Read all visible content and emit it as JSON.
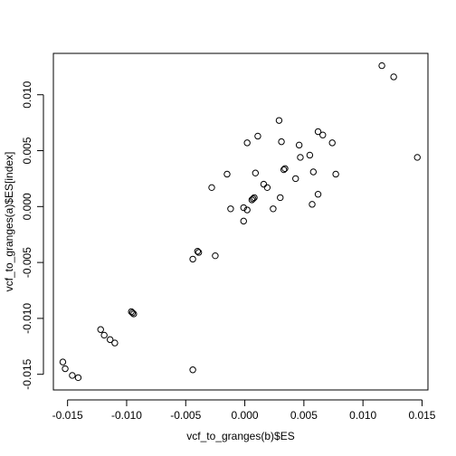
{
  "chart_data": {
    "type": "scatter",
    "title": "",
    "xlabel": "vcf_to_granges(b)$ES",
    "ylabel": "vcf_to_granges(a)$ES[index]",
    "xlim": [
      -0.0162,
      0.0155
    ],
    "ylim": [
      -0.0164,
      0.0137
    ],
    "x_ticks": [
      -0.015,
      -0.01,
      -0.005,
      0.0,
      0.005,
      0.01,
      0.015
    ],
    "x_tick_labels": [
      "-0.015",
      "-0.010",
      "-0.005",
      "0.000",
      "0.005",
      "0.010",
      "0.015"
    ],
    "y_ticks": [
      -0.015,
      -0.01,
      -0.005,
      0.0,
      0.005,
      0.01
    ],
    "y_tick_labels": [
      "-0.015",
      "-0.010",
      "-0.005",
      "0.000",
      "0.005",
      "0.010"
    ],
    "grid": false,
    "marker": "open-circle",
    "points": [
      {
        "x": 0.0116,
        "y": 0.0126
      },
      {
        "x": 0.0126,
        "y": 0.0116
      },
      {
        "x": 0.0146,
        "y": 0.0044
      },
      {
        "x": 0.0029,
        "y": 0.0077
      },
      {
        "x": 0.0062,
        "y": 0.0067
      },
      {
        "x": 0.0066,
        "y": 0.0064
      },
      {
        "x": 0.0011,
        "y": 0.0063
      },
      {
        "x": 0.0002,
        "y": 0.0057
      },
      {
        "x": 0.0031,
        "y": 0.0058
      },
      {
        "x": 0.0046,
        "y": 0.0055
      },
      {
        "x": 0.0074,
        "y": 0.0057
      },
      {
        "x": 0.0055,
        "y": 0.0046
      },
      {
        "x": 0.0047,
        "y": 0.0044
      },
      {
        "x": 0.0034,
        "y": 0.0034
      },
      {
        "x": 0.0033,
        "y": 0.0033
      },
      {
        "x": 0.0058,
        "y": 0.0031
      },
      {
        "x": 0.0077,
        "y": 0.0029
      },
      {
        "x": 0.0009,
        "y": 0.003
      },
      {
        "x": -0.0015,
        "y": 0.0029
      },
      {
        "x": 0.0043,
        "y": 0.0025
      },
      {
        "x": 0.0016,
        "y": 0.002
      },
      {
        "x": 0.0019,
        "y": 0.0017
      },
      {
        "x": -0.0028,
        "y": 0.0017
      },
      {
        "x": 0.0062,
        "y": 0.0011
      },
      {
        "x": 0.0008,
        "y": 0.0008
      },
      {
        "x": 0.0007,
        "y": 0.0007
      },
      {
        "x": 0.0006,
        "y": 0.0006
      },
      {
        "x": 0.003,
        "y": 0.0008
      },
      {
        "x": 0.0057,
        "y": 0.0002
      },
      {
        "x": -0.0012,
        "y": -0.0002
      },
      {
        "x": -0.0001,
        "y": -0.0001
      },
      {
        "x": 0.0002,
        "y": -0.0003
      },
      {
        "x": 0.0024,
        "y": -0.0002
      },
      {
        "x": -0.0001,
        "y": -0.0013
      },
      {
        "x": -0.004,
        "y": -0.004
      },
      {
        "x": -0.0039,
        "y": -0.0041
      },
      {
        "x": -0.0044,
        "y": -0.0047
      },
      {
        "x": -0.0025,
        "y": -0.0044
      },
      {
        "x": -0.0096,
        "y": -0.0094
      },
      {
        "x": -0.0095,
        "y": -0.0095
      },
      {
        "x": -0.0094,
        "y": -0.0096
      },
      {
        "x": -0.0122,
        "y": -0.011
      },
      {
        "x": -0.0119,
        "y": -0.0115
      },
      {
        "x": -0.0114,
        "y": -0.0119
      },
      {
        "x": -0.011,
        "y": -0.0122
      },
      {
        "x": -0.0154,
        "y": -0.0139
      },
      {
        "x": -0.0152,
        "y": -0.0145
      },
      {
        "x": -0.0146,
        "y": -0.0151
      },
      {
        "x": -0.0141,
        "y": -0.0153
      },
      {
        "x": -0.0044,
        "y": -0.0146
      }
    ]
  }
}
